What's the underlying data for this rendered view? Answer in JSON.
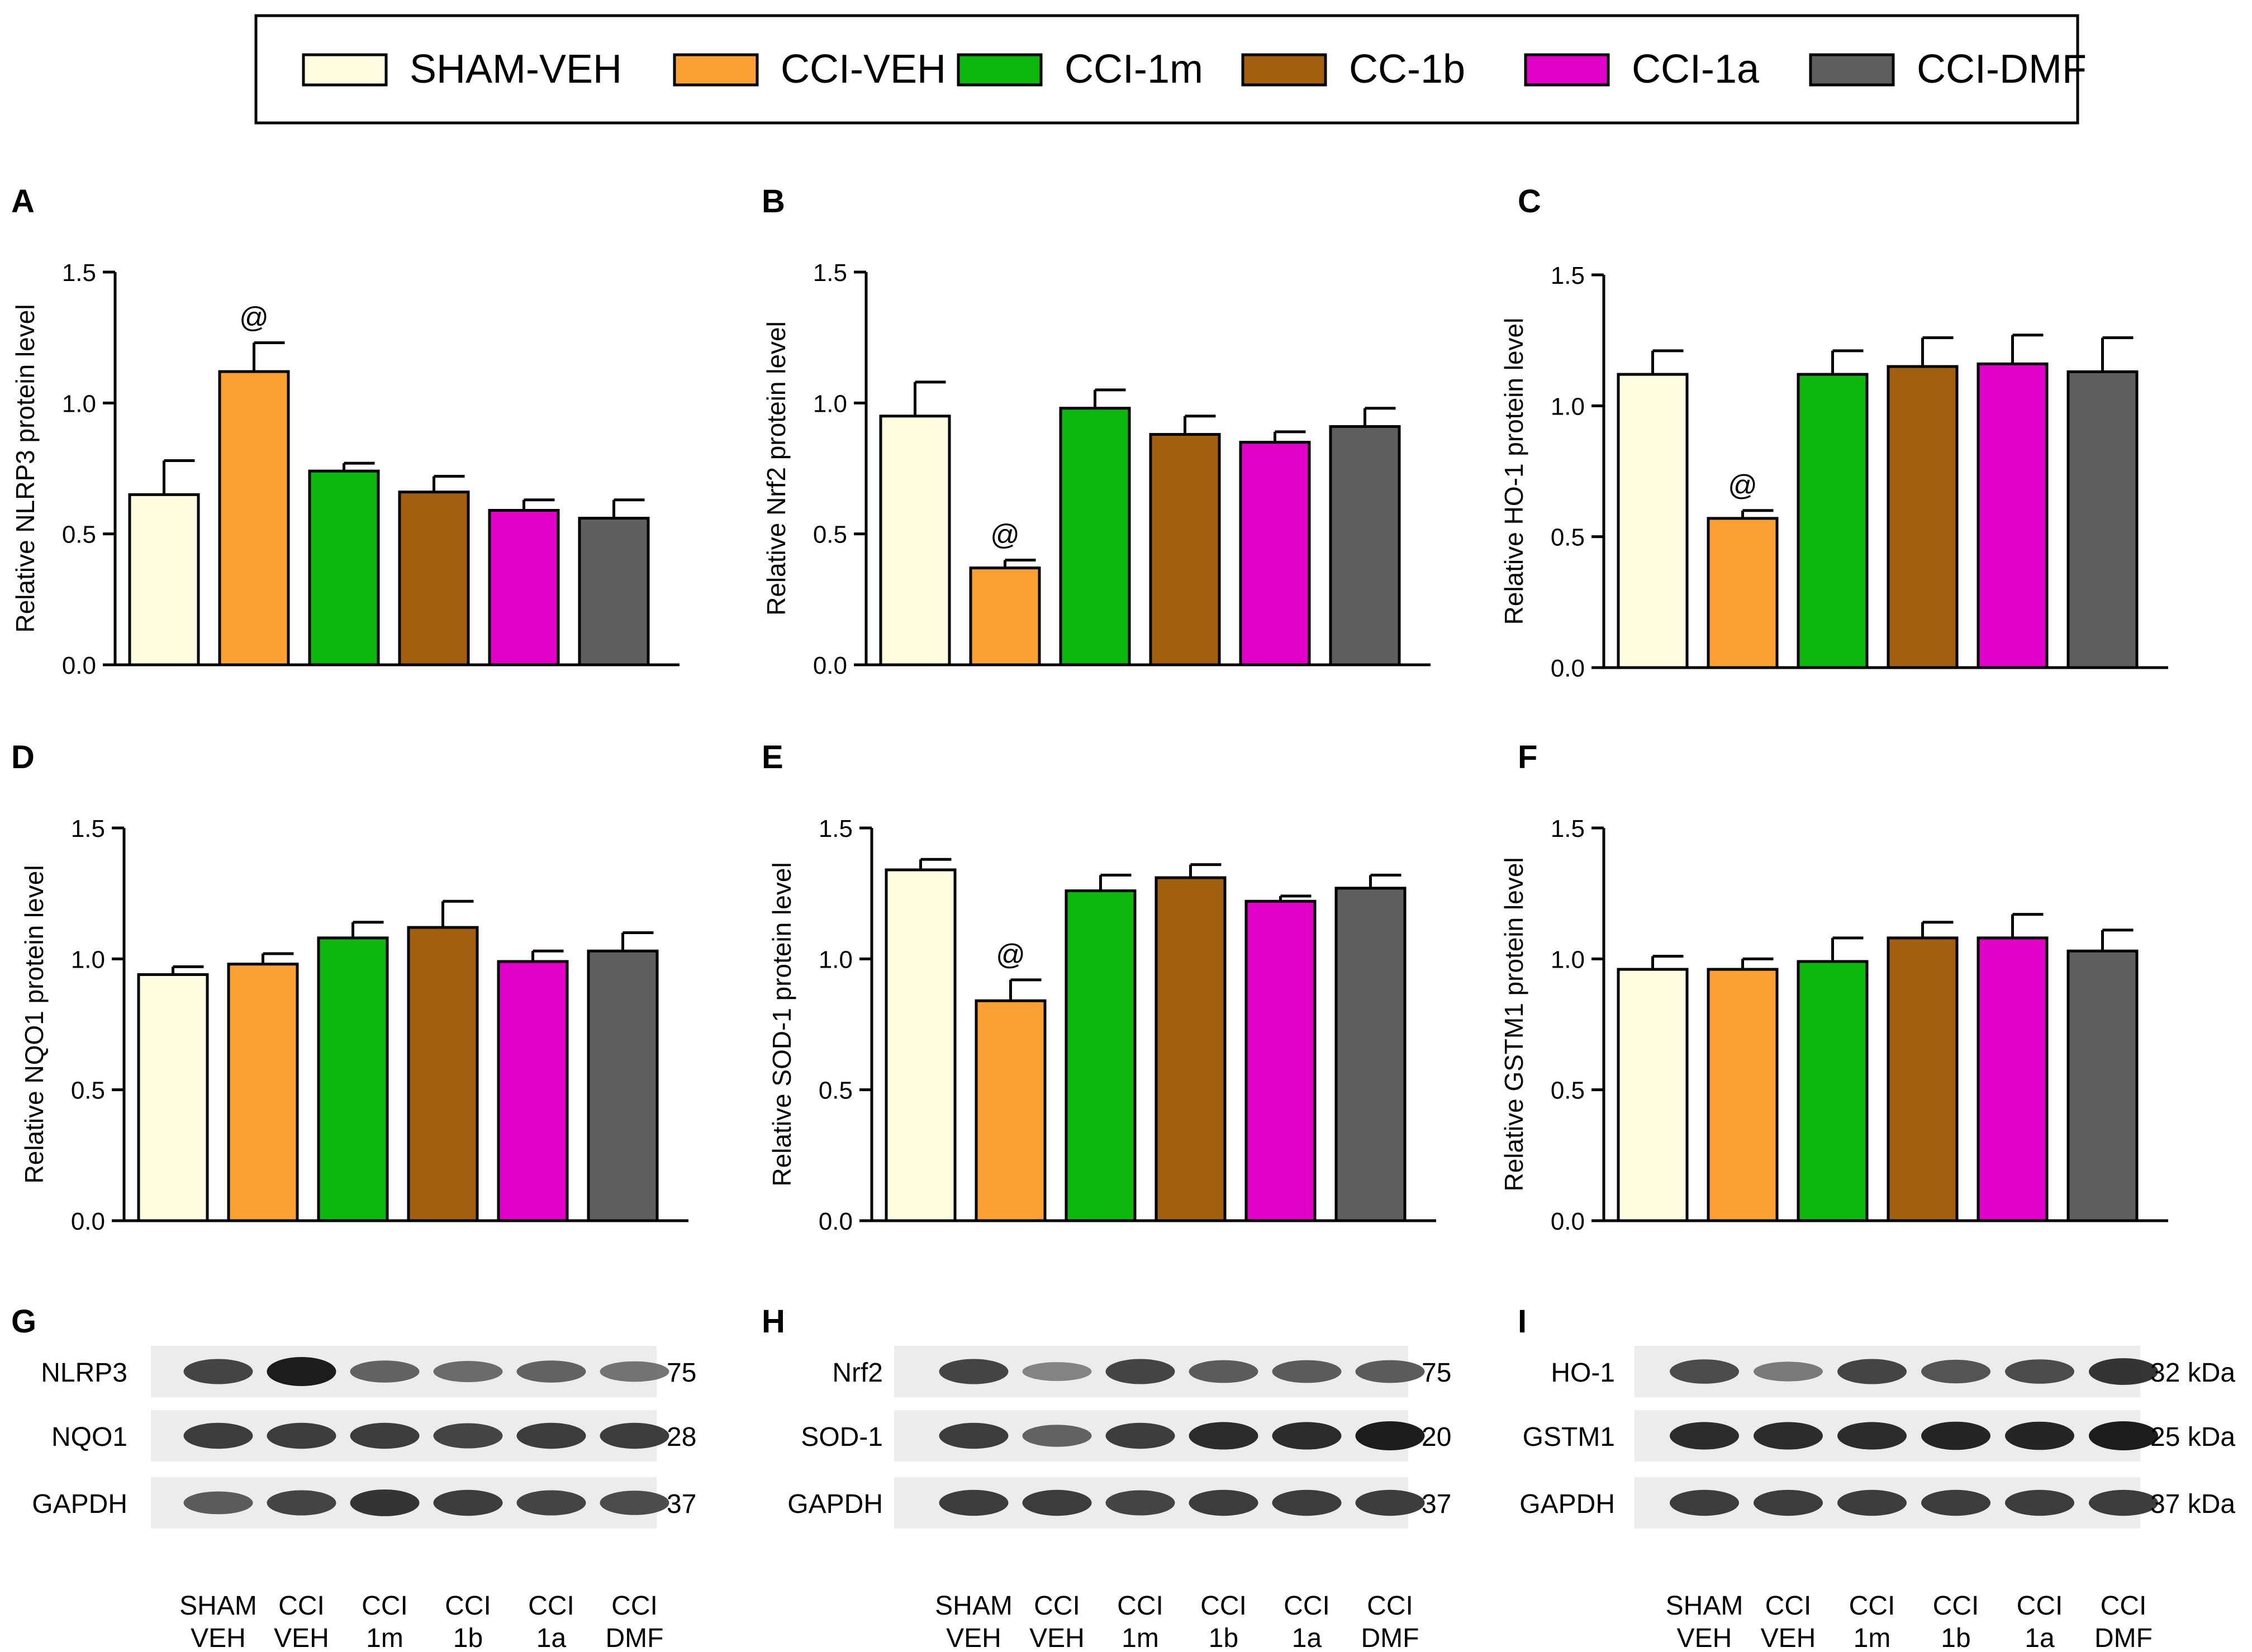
{
  "legend": [
    {
      "name": "SHAM-VEH",
      "color": "#FFFDE0"
    },
    {
      "name": "CCI-VEH",
      "color": "#FBA035"
    },
    {
      "name": "CCI-1m",
      "color": "#0DB70D"
    },
    {
      "name": "CC-1b",
      "color": "#A25F10"
    },
    {
      "name": "CCI-1a",
      "color": "#E000C8"
    },
    {
      "name": "CCI-DMF",
      "color": "#5F5F5F"
    }
  ],
  "chart_data": [
    {
      "panel": "A",
      "type": "bar",
      "ylabel": "Relative NLRP3 protein level",
      "ylim": [
        0,
        1.5
      ],
      "yticks": [
        "0.0",
        "0.5",
        "1.0",
        "1.5"
      ],
      "categories": [
        "SHAM-VEH",
        "CCI-VEH",
        "CCI-1m",
        "CC-1b",
        "CCI-1a",
        "CCI-DMF"
      ],
      "values": [
        0.65,
        1.12,
        0.74,
        0.66,
        0.59,
        0.56
      ],
      "errors": [
        0.13,
        0.11,
        0.03,
        0.06,
        0.04,
        0.07
      ],
      "annotations": [
        {
          "bar": 1,
          "text": "@"
        }
      ]
    },
    {
      "panel": "B",
      "type": "bar",
      "ylabel": "Relative Nrf2 protein level",
      "ylim": [
        0,
        1.5
      ],
      "yticks": [
        "0.0",
        "0.5",
        "1.0",
        "1.5"
      ],
      "categories": [
        "SHAM-VEH",
        "CCI-VEH",
        "CCI-1m",
        "CC-1b",
        "CCI-1a",
        "CCI-DMF"
      ],
      "values": [
        0.95,
        0.37,
        0.98,
        0.88,
        0.85,
        0.91
      ],
      "errors": [
        0.13,
        0.03,
        0.07,
        0.07,
        0.04,
        0.07
      ],
      "annotations": [
        {
          "bar": 1,
          "text": "@"
        }
      ]
    },
    {
      "panel": "C",
      "type": "bar",
      "ylabel": "Relative HO-1 protein level",
      "ylim": [
        0,
        1.5
      ],
      "yticks": [
        "0.0",
        "0.5",
        "1.0",
        "1.5"
      ],
      "categories": [
        "SHAM-VEH",
        "CCI-VEH",
        "CCI-1m",
        "CC-1b",
        "CCI-1a",
        "CCI-DMF"
      ],
      "values": [
        1.12,
        0.57,
        1.12,
        1.15,
        1.16,
        1.13
      ],
      "errors": [
        0.09,
        0.03,
        0.09,
        0.11,
        0.11,
        0.13
      ],
      "annotations": [
        {
          "bar": 1,
          "text": "@"
        }
      ]
    },
    {
      "panel": "D",
      "type": "bar",
      "ylabel": "Relative NQO1 protein level",
      "ylim": [
        0,
        1.5
      ],
      "yticks": [
        "0.0",
        "0.5",
        "1.0",
        "1.5"
      ],
      "categories": [
        "SHAM-VEH",
        "CCI-VEH",
        "CCI-1m",
        "CC-1b",
        "CCI-1a",
        "CCI-DMF"
      ],
      "values": [
        0.94,
        0.98,
        1.08,
        1.12,
        0.99,
        1.03
      ],
      "errors": [
        0.03,
        0.04,
        0.06,
        0.1,
        0.04,
        0.07
      ],
      "annotations": []
    },
    {
      "panel": "E",
      "type": "bar",
      "ylabel": "Relative SOD-1 protein level",
      "ylim": [
        0,
        1.5
      ],
      "yticks": [
        "0.0",
        "0.5",
        "1.0",
        "1.5"
      ],
      "categories": [
        "SHAM-VEH",
        "CCI-VEH",
        "CCI-1m",
        "CC-1b",
        "CCI-1a",
        "CCI-DMF"
      ],
      "values": [
        1.34,
        0.84,
        1.26,
        1.31,
        1.22,
        1.27
      ],
      "errors": [
        0.04,
        0.08,
        0.06,
        0.05,
        0.02,
        0.05
      ],
      "annotations": [
        {
          "bar": 1,
          "text": "@"
        }
      ]
    },
    {
      "panel": "F",
      "type": "bar",
      "ylabel": "Relative GSTM1 protein level",
      "ylim": [
        0,
        1.5
      ],
      "yticks": [
        "0.0",
        "0.5",
        "1.0",
        "1.5"
      ],
      "categories": [
        "SHAM-VEH",
        "CCI-VEH",
        "CCI-1m",
        "CC-1b",
        "CCI-1a",
        "CCI-DMF"
      ],
      "values": [
        0.96,
        0.96,
        0.99,
        1.08,
        1.08,
        1.03
      ],
      "errors": [
        0.05,
        0.04,
        0.09,
        0.06,
        0.09,
        0.08
      ],
      "annotations": []
    }
  ],
  "blots": [
    {
      "panel": "G",
      "rows": [
        {
          "protein": "NLRP3",
          "kda": "75",
          "intensity": [
            0.75,
            1.0,
            0.55,
            0.5,
            0.55,
            0.45
          ]
        },
        {
          "protein": "NQO1",
          "kda": "28",
          "intensity": [
            0.8,
            0.8,
            0.8,
            0.75,
            0.8,
            0.8
          ]
        },
        {
          "protein": "GAPDH",
          "kda": "37",
          "intensity": [
            0.6,
            0.75,
            0.85,
            0.8,
            0.75,
            0.7
          ]
        }
      ],
      "lanes": [
        [
          "SHAM",
          "VEH"
        ],
        [
          "CCI",
          "VEH"
        ],
        [
          "CCI",
          "1m"
        ],
        [
          "CCI",
          "1b"
        ],
        [
          "CCI",
          "1a"
        ],
        [
          "CCI",
          "DMF"
        ]
      ]
    },
    {
      "panel": "H",
      "rows": [
        {
          "protein": "Nrf2",
          "kda": "75",
          "intensity": [
            0.75,
            0.35,
            0.75,
            0.6,
            0.6,
            0.6
          ]
        },
        {
          "protein": "SOD-1",
          "kda": "20",
          "intensity": [
            0.8,
            0.55,
            0.8,
            0.9,
            0.9,
            1.0
          ]
        },
        {
          "protein": "GAPDH",
          "kda": "37",
          "intensity": [
            0.8,
            0.8,
            0.75,
            0.8,
            0.8,
            0.8
          ]
        }
      ],
      "lanes": [
        [
          "SHAM",
          "VEH"
        ],
        [
          "CCI",
          "VEH"
        ],
        [
          "CCI",
          "1m"
        ],
        [
          "CCI",
          "1b"
        ],
        [
          "CCI",
          "1a"
        ],
        [
          "CCI",
          "DMF"
        ]
      ]
    },
    {
      "panel": "I",
      "rows": [
        {
          "protein": "HO-1",
          "kda": "32 kDa",
          "intensity": [
            0.7,
            0.4,
            0.75,
            0.65,
            0.7,
            0.85
          ]
        },
        {
          "protein": "GSTM1",
          "kda": "25 kDa",
          "intensity": [
            0.9,
            0.9,
            0.9,
            0.95,
            0.95,
            1.0
          ]
        },
        {
          "protein": "GAPDH",
          "kda": "37 kDa",
          "intensity": [
            0.8,
            0.8,
            0.8,
            0.8,
            0.8,
            0.8
          ]
        }
      ],
      "lanes": [
        [
          "SHAM",
          "VEH"
        ],
        [
          "CCI",
          "VEH"
        ],
        [
          "CCI",
          "1m"
        ],
        [
          "CCI",
          "1b"
        ],
        [
          "CCI",
          "1a"
        ],
        [
          "CCI",
          "DMF"
        ]
      ]
    }
  ]
}
